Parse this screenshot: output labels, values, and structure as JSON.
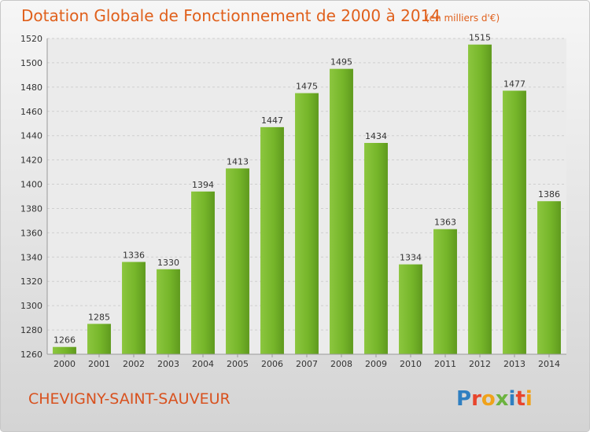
{
  "chart_data": {
    "type": "bar",
    "title": "Dotation Globale de Fonctionnement de 2000 à 2014",
    "subtitle": "(en milliers d'€)",
    "categories": [
      "2000",
      "2001",
      "2002",
      "2003",
      "2004",
      "2005",
      "2006",
      "2007",
      "2008",
      "2009",
      "2010",
      "2011",
      "2012",
      "2013",
      "2014"
    ],
    "values": [
      1266,
      1285,
      1336,
      1330,
      1394,
      1413,
      1447,
      1475,
      1495,
      1434,
      1334,
      1363,
      1515,
      1477,
      1386
    ],
    "ylim": [
      1260,
      1520
    ],
    "yticks": [
      1260,
      1280,
      1300,
      1320,
      1340,
      1360,
      1380,
      1400,
      1420,
      1440,
      1460,
      1480,
      1500,
      1520
    ],
    "grid": true,
    "bar_color": "#7ab82c"
  },
  "footer": {
    "place": "CHEVIGNY-SAINT-SAUVEUR",
    "logo": "Proxiti"
  }
}
